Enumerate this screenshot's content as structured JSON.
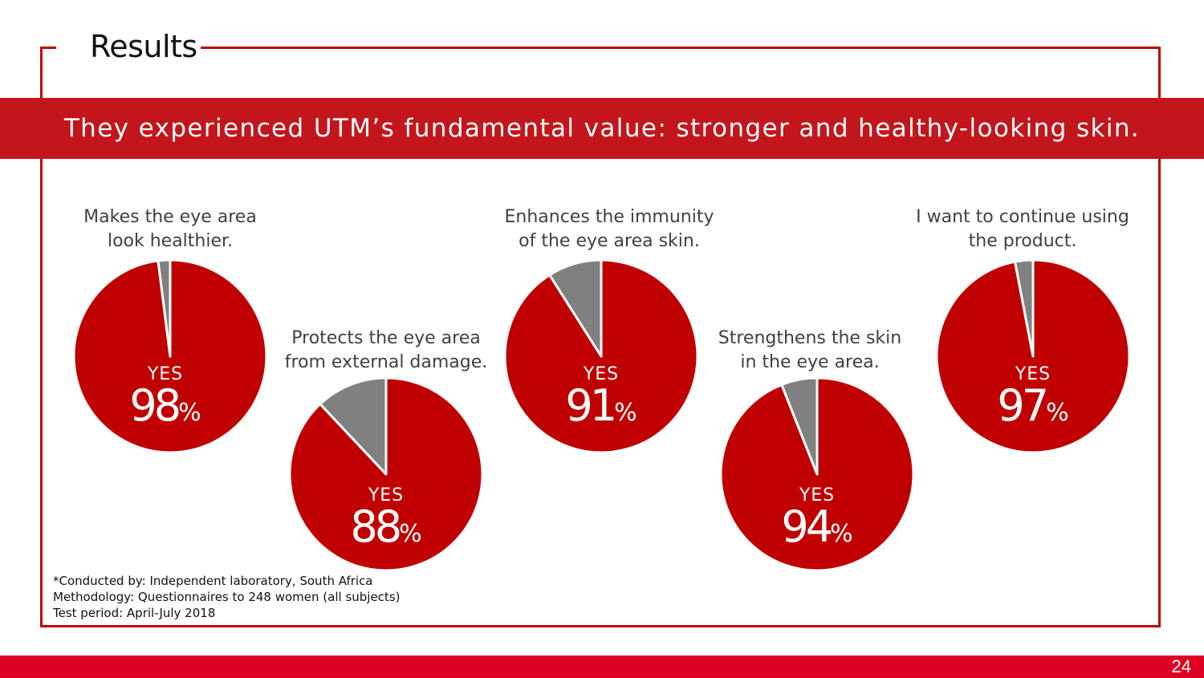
{
  "page": {
    "title": "Results",
    "headline": "They experienced UTM’s fundamental value: stronger and healthy-looking skin.",
    "page_number": "24"
  },
  "colors": {
    "accent": "#c00000",
    "banner": "#c3161c",
    "footer": "#dd0022",
    "yes_slice": "#c00000",
    "no_slice": "#808080"
  },
  "chart_data": [
    {
      "type": "pie",
      "label_lines": [
        "Makes the eye area",
        "look healthier."
      ],
      "slice_label": "YES",
      "value": 98,
      "unit": "%"
    },
    {
      "type": "pie",
      "label_lines": [
        "Protects the eye area",
        "from external damage."
      ],
      "slice_label": "YES",
      "value": 88,
      "unit": "%"
    },
    {
      "type": "pie",
      "label_lines": [
        "Enhances the immunity",
        "of the eye area skin."
      ],
      "slice_label": "YES",
      "value": 91,
      "unit": "%"
    },
    {
      "type": "pie",
      "label_lines": [
        "Strengthens the skin",
        "in the eye area."
      ],
      "slice_label": "YES",
      "value": 94,
      "unit": "%"
    },
    {
      "type": "pie",
      "label_lines": [
        "I want to continue using",
        "the product."
      ],
      "slice_label": "YES",
      "value": 97,
      "unit": "%"
    }
  ],
  "notes": [
    "*Conducted by: Independent laboratory, South Africa",
    " Methodology: Questionnaires to 248 women (all subjects)",
    " Test period: April-July 2018"
  ]
}
